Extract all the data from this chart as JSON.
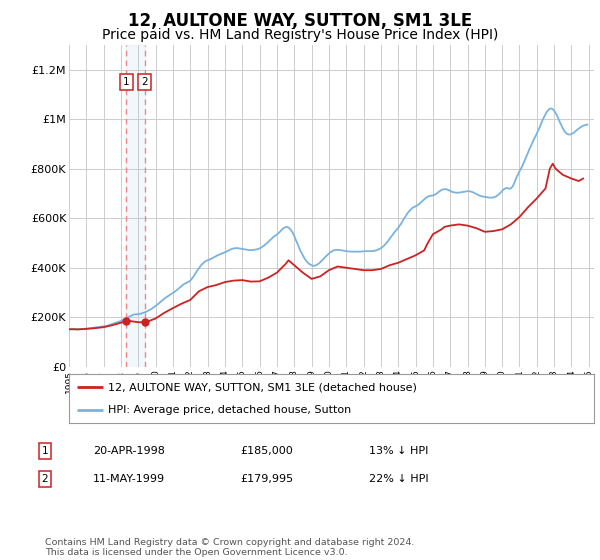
{
  "title": "12, AULTONE WAY, SUTTON, SM1 3LE",
  "subtitle": "Price paid vs. HM Land Registry's House Price Index (HPI)",
  "title_fontsize": 12,
  "subtitle_fontsize": 10,
  "ylim": [
    0,
    1300000
  ],
  "yticks": [
    0,
    200000,
    400000,
    600000,
    800000,
    1000000,
    1200000
  ],
  "ytick_labels": [
    "£0",
    "£200K",
    "£400K",
    "£600K",
    "£800K",
    "£1M",
    "£1.2M"
  ],
  "background_color": "#ffffff",
  "plot_bg_color": "#ffffff",
  "grid_color": "#cccccc",
  "sale1_date": 1998.31,
  "sale1_price": 185000,
  "sale2_date": 1999.37,
  "sale2_price": 179995,
  "sale1_label": "20-APR-1998",
  "sale1_price_label": "£185,000",
  "sale1_hpi": "13% ↓ HPI",
  "sale2_label": "11-MAY-1999",
  "sale2_price_label": "£179,995",
  "sale2_hpi": "22% ↓ HPI",
  "hpi_color": "#7ab3e0",
  "price_color": "#cc2222",
  "marker_color": "#cc2222",
  "vline_color": "#ee8888",
  "footnote": "Contains HM Land Registry data © Crown copyright and database right 2024.\nThis data is licensed under the Open Government Licence v3.0.",
  "legend_label1": "12, AULTONE WAY, SUTTON, SM1 3LE (detached house)",
  "legend_label2": "HPI: Average price, detached house, Sutton",
  "hpi_data": [
    [
      1995.0,
      152000
    ],
    [
      1995.08,
      151000
    ],
    [
      1995.17,
      151500
    ],
    [
      1995.25,
      152000
    ],
    [
      1995.33,
      152500
    ],
    [
      1995.42,
      152000
    ],
    [
      1995.5,
      151000
    ],
    [
      1995.58,
      151500
    ],
    [
      1995.67,
      152000
    ],
    [
      1995.75,
      153000
    ],
    [
      1995.83,
      153500
    ],
    [
      1995.92,
      154000
    ],
    [
      1996.0,
      154000
    ],
    [
      1996.08,
      154500
    ],
    [
      1996.17,
      155000
    ],
    [
      1996.25,
      156000
    ],
    [
      1996.33,
      157000
    ],
    [
      1996.42,
      158000
    ],
    [
      1996.5,
      158500
    ],
    [
      1996.58,
      159000
    ],
    [
      1996.67,
      160000
    ],
    [
      1996.75,
      161000
    ],
    [
      1996.83,
      162000
    ],
    [
      1996.92,
      163000
    ],
    [
      1997.0,
      163000
    ],
    [
      1997.08,
      164000
    ],
    [
      1997.17,
      165000
    ],
    [
      1997.25,
      167000
    ],
    [
      1997.33,
      169000
    ],
    [
      1997.42,
      171000
    ],
    [
      1997.5,
      173000
    ],
    [
      1997.58,
      175000
    ],
    [
      1997.67,
      177000
    ],
    [
      1997.75,
      179000
    ],
    [
      1997.83,
      181000
    ],
    [
      1997.92,
      183000
    ],
    [
      1998.0,
      185000
    ],
    [
      1998.08,
      188000
    ],
    [
      1998.17,
      191000
    ],
    [
      1998.25,
      194000
    ],
    [
      1998.33,
      197000
    ],
    [
      1998.42,
      200000
    ],
    [
      1998.5,
      203000
    ],
    [
      1998.58,
      206000
    ],
    [
      1998.67,
      209000
    ],
    [
      1998.75,
      211000
    ],
    [
      1998.83,
      212000
    ],
    [
      1998.92,
      212000
    ],
    [
      1999.0,
      213000
    ],
    [
      1999.08,
      214000
    ],
    [
      1999.17,
      215000
    ],
    [
      1999.25,
      217000
    ],
    [
      1999.33,
      219000
    ],
    [
      1999.42,
      221000
    ],
    [
      1999.5,
      224000
    ],
    [
      1999.58,
      227000
    ],
    [
      1999.67,
      230000
    ],
    [
      1999.75,
      233000
    ],
    [
      1999.83,
      237000
    ],
    [
      1999.92,
      241000
    ],
    [
      2000.0,
      245000
    ],
    [
      2000.08,
      250000
    ],
    [
      2000.17,
      255000
    ],
    [
      2000.25,
      260000
    ],
    [
      2000.33,
      265000
    ],
    [
      2000.42,
      270000
    ],
    [
      2000.5,
      275000
    ],
    [
      2000.58,
      279000
    ],
    [
      2000.67,
      283000
    ],
    [
      2000.75,
      287000
    ],
    [
      2000.83,
      291000
    ],
    [
      2000.92,
      295000
    ],
    [
      2001.0,
      298000
    ],
    [
      2001.08,
      302000
    ],
    [
      2001.17,
      306000
    ],
    [
      2001.25,
      311000
    ],
    [
      2001.33,
      316000
    ],
    [
      2001.42,
      321000
    ],
    [
      2001.5,
      326000
    ],
    [
      2001.58,
      331000
    ],
    [
      2001.67,
      335000
    ],
    [
      2001.75,
      338000
    ],
    [
      2001.83,
      341000
    ],
    [
      2001.92,
      344000
    ],
    [
      2002.0,
      348000
    ],
    [
      2002.08,
      355000
    ],
    [
      2002.17,
      363000
    ],
    [
      2002.25,
      372000
    ],
    [
      2002.33,
      381000
    ],
    [
      2002.42,
      390000
    ],
    [
      2002.5,
      398000
    ],
    [
      2002.58,
      406000
    ],
    [
      2002.67,
      413000
    ],
    [
      2002.75,
      419000
    ],
    [
      2002.83,
      424000
    ],
    [
      2002.92,
      428000
    ],
    [
      2003.0,
      430000
    ],
    [
      2003.08,
      432000
    ],
    [
      2003.17,
      435000
    ],
    [
      2003.25,
      438000
    ],
    [
      2003.33,
      441000
    ],
    [
      2003.42,
      444000
    ],
    [
      2003.5,
      447000
    ],
    [
      2003.58,
      450000
    ],
    [
      2003.67,
      453000
    ],
    [
      2003.75,
      456000
    ],
    [
      2003.83,
      458000
    ],
    [
      2003.92,
      460000
    ],
    [
      2004.0,
      462000
    ],
    [
      2004.08,
      465000
    ],
    [
      2004.17,
      468000
    ],
    [
      2004.25,
      471000
    ],
    [
      2004.33,
      474000
    ],
    [
      2004.42,
      476000
    ],
    [
      2004.5,
      478000
    ],
    [
      2004.58,
      479000
    ],
    [
      2004.67,
      479000
    ],
    [
      2004.75,
      479000
    ],
    [
      2004.83,
      478000
    ],
    [
      2004.92,
      477000
    ],
    [
      2005.0,
      476000
    ],
    [
      2005.08,
      475000
    ],
    [
      2005.17,
      474000
    ],
    [
      2005.25,
      473000
    ],
    [
      2005.33,
      472000
    ],
    [
      2005.42,
      471000
    ],
    [
      2005.5,
      471000
    ],
    [
      2005.58,
      471000
    ],
    [
      2005.67,
      472000
    ],
    [
      2005.75,
      473000
    ],
    [
      2005.83,
      474000
    ],
    [
      2005.92,
      476000
    ],
    [
      2006.0,
      478000
    ],
    [
      2006.08,
      481000
    ],
    [
      2006.17,
      485000
    ],
    [
      2006.25,
      489000
    ],
    [
      2006.33,
      494000
    ],
    [
      2006.42,
      499000
    ],
    [
      2006.5,
      504000
    ],
    [
      2006.58,
      510000
    ],
    [
      2006.67,
      516000
    ],
    [
      2006.75,
      521000
    ],
    [
      2006.83,
      526000
    ],
    [
      2006.92,
      530000
    ],
    [
      2007.0,
      534000
    ],
    [
      2007.08,
      539000
    ],
    [
      2007.17,
      545000
    ],
    [
      2007.25,
      551000
    ],
    [
      2007.33,
      557000
    ],
    [
      2007.42,
      561000
    ],
    [
      2007.5,
      564000
    ],
    [
      2007.58,
      565000
    ],
    [
      2007.67,
      562000
    ],
    [
      2007.75,
      557000
    ],
    [
      2007.83,
      550000
    ],
    [
      2007.92,
      540000
    ],
    [
      2008.0,
      528000
    ],
    [
      2008.08,
      514000
    ],
    [
      2008.17,
      500000
    ],
    [
      2008.25,
      486000
    ],
    [
      2008.33,
      472000
    ],
    [
      2008.42,
      460000
    ],
    [
      2008.5,
      449000
    ],
    [
      2008.58,
      439000
    ],
    [
      2008.67,
      430000
    ],
    [
      2008.75,
      423000
    ],
    [
      2008.83,
      417000
    ],
    [
      2008.92,
      413000
    ],
    [
      2009.0,
      410000
    ],
    [
      2009.08,
      408000
    ],
    [
      2009.17,
      408000
    ],
    [
      2009.25,
      410000
    ],
    [
      2009.33,
      413000
    ],
    [
      2009.42,
      417000
    ],
    [
      2009.5,
      422000
    ],
    [
      2009.58,
      428000
    ],
    [
      2009.67,
      434000
    ],
    [
      2009.75,
      440000
    ],
    [
      2009.83,
      446000
    ],
    [
      2009.92,
      452000
    ],
    [
      2010.0,
      457000
    ],
    [
      2010.08,
      462000
    ],
    [
      2010.17,
      466000
    ],
    [
      2010.25,
      469000
    ],
    [
      2010.33,
      471000
    ],
    [
      2010.42,
      472000
    ],
    [
      2010.5,
      472000
    ],
    [
      2010.58,
      472000
    ],
    [
      2010.67,
      471000
    ],
    [
      2010.75,
      470000
    ],
    [
      2010.83,
      469000
    ],
    [
      2010.92,
      468000
    ],
    [
      2011.0,
      467000
    ],
    [
      2011.08,
      466000
    ],
    [
      2011.17,
      466000
    ],
    [
      2011.25,
      465000
    ],
    [
      2011.33,
      465000
    ],
    [
      2011.42,
      465000
    ],
    [
      2011.5,
      465000
    ],
    [
      2011.58,
      465000
    ],
    [
      2011.67,
      465000
    ],
    [
      2011.75,
      465000
    ],
    [
      2011.83,
      465000
    ],
    [
      2011.92,
      466000
    ],
    [
      2012.0,
      466000
    ],
    [
      2012.08,
      467000
    ],
    [
      2012.17,
      467000
    ],
    [
      2012.25,
      467000
    ],
    [
      2012.33,
      467000
    ],
    [
      2012.42,
      467000
    ],
    [
      2012.5,
      467000
    ],
    [
      2012.58,
      468000
    ],
    [
      2012.67,
      469000
    ],
    [
      2012.75,
      471000
    ],
    [
      2012.83,
      473000
    ],
    [
      2012.92,
      476000
    ],
    [
      2013.0,
      479000
    ],
    [
      2013.08,
      483000
    ],
    [
      2013.17,
      488000
    ],
    [
      2013.25,
      494000
    ],
    [
      2013.33,
      501000
    ],
    [
      2013.42,
      508000
    ],
    [
      2013.5,
      516000
    ],
    [
      2013.58,
      524000
    ],
    [
      2013.67,
      532000
    ],
    [
      2013.75,
      540000
    ],
    [
      2013.83,
      547000
    ],
    [
      2013.92,
      554000
    ],
    [
      2014.0,
      561000
    ],
    [
      2014.08,
      569000
    ],
    [
      2014.17,
      578000
    ],
    [
      2014.25,
      588000
    ],
    [
      2014.33,
      598000
    ],
    [
      2014.42,
      607000
    ],
    [
      2014.5,
      616000
    ],
    [
      2014.58,
      624000
    ],
    [
      2014.67,
      631000
    ],
    [
      2014.75,
      637000
    ],
    [
      2014.83,
      642000
    ],
    [
      2014.92,
      645000
    ],
    [
      2015.0,
      648000
    ],
    [
      2015.08,
      651000
    ],
    [
      2015.17,
      655000
    ],
    [
      2015.25,
      660000
    ],
    [
      2015.33,
      665000
    ],
    [
      2015.42,
      671000
    ],
    [
      2015.5,
      676000
    ],
    [
      2015.58,
      681000
    ],
    [
      2015.67,
      685000
    ],
    [
      2015.75,
      688000
    ],
    [
      2015.83,
      690000
    ],
    [
      2015.92,
      691000
    ],
    [
      2016.0,
      692000
    ],
    [
      2016.08,
      694000
    ],
    [
      2016.17,
      697000
    ],
    [
      2016.25,
      701000
    ],
    [
      2016.33,
      706000
    ],
    [
      2016.42,
      710000
    ],
    [
      2016.5,
      714000
    ],
    [
      2016.58,
      716000
    ],
    [
      2016.67,
      717000
    ],
    [
      2016.75,
      717000
    ],
    [
      2016.83,
      716000
    ],
    [
      2016.92,
      713000
    ],
    [
      2017.0,
      710000
    ],
    [
      2017.08,
      707000
    ],
    [
      2017.17,
      705000
    ],
    [
      2017.25,
      704000
    ],
    [
      2017.33,
      703000
    ],
    [
      2017.42,
      703000
    ],
    [
      2017.5,
      703000
    ],
    [
      2017.58,
      704000
    ],
    [
      2017.67,
      705000
    ],
    [
      2017.75,
      706000
    ],
    [
      2017.83,
      707000
    ],
    [
      2017.92,
      708000
    ],
    [
      2018.0,
      709000
    ],
    [
      2018.08,
      709000
    ],
    [
      2018.17,
      708000
    ],
    [
      2018.25,
      706000
    ],
    [
      2018.33,
      704000
    ],
    [
      2018.42,
      701000
    ],
    [
      2018.5,
      698000
    ],
    [
      2018.58,
      695000
    ],
    [
      2018.67,
      692000
    ],
    [
      2018.75,
      690000
    ],
    [
      2018.83,
      688000
    ],
    [
      2018.92,
      687000
    ],
    [
      2019.0,
      686000
    ],
    [
      2019.08,
      685000
    ],
    [
      2019.17,
      684000
    ],
    [
      2019.25,
      683000
    ],
    [
      2019.33,
      683000
    ],
    [
      2019.42,
      683000
    ],
    [
      2019.5,
      684000
    ],
    [
      2019.58,
      686000
    ],
    [
      2019.67,
      689000
    ],
    [
      2019.75,
      693000
    ],
    [
      2019.83,
      698000
    ],
    [
      2019.92,
      704000
    ],
    [
      2020.0,
      710000
    ],
    [
      2020.08,
      716000
    ],
    [
      2020.17,
      720000
    ],
    [
      2020.25,
      722000
    ],
    [
      2020.33,
      721000
    ],
    [
      2020.42,
      719000
    ],
    [
      2020.5,
      720000
    ],
    [
      2020.58,
      726000
    ],
    [
      2020.67,
      737000
    ],
    [
      2020.75,
      751000
    ],
    [
      2020.83,
      765000
    ],
    [
      2020.92,
      778000
    ],
    [
      2021.0,
      789000
    ],
    [
      2021.08,
      800000
    ],
    [
      2021.17,
      812000
    ],
    [
      2021.25,
      825000
    ],
    [
      2021.33,
      838000
    ],
    [
      2021.42,
      852000
    ],
    [
      2021.5,
      866000
    ],
    [
      2021.58,
      880000
    ],
    [
      2021.67,
      893000
    ],
    [
      2021.75,
      906000
    ],
    [
      2021.83,
      918000
    ],
    [
      2021.92,
      930000
    ],
    [
      2022.0,
      942000
    ],
    [
      2022.08,
      955000
    ],
    [
      2022.17,
      968000
    ],
    [
      2022.25,
      982000
    ],
    [
      2022.33,
      996000
    ],
    [
      2022.42,
      1009000
    ],
    [
      2022.5,
      1020000
    ],
    [
      2022.58,
      1030000
    ],
    [
      2022.67,
      1037000
    ],
    [
      2022.75,
      1042000
    ],
    [
      2022.83,
      1043000
    ],
    [
      2022.92,
      1040000
    ],
    [
      2023.0,
      1034000
    ],
    [
      2023.08,
      1025000
    ],
    [
      2023.17,
      1014000
    ],
    [
      2023.25,
      1001000
    ],
    [
      2023.33,
      988000
    ],
    [
      2023.42,
      975000
    ],
    [
      2023.5,
      963000
    ],
    [
      2023.58,
      953000
    ],
    [
      2023.67,
      945000
    ],
    [
      2023.75,
      940000
    ],
    [
      2023.83,
      938000
    ],
    [
      2023.92,
      938000
    ],
    [
      2024.0,
      940000
    ],
    [
      2024.08,
      943000
    ],
    [
      2024.17,
      947000
    ],
    [
      2024.25,
      952000
    ],
    [
      2024.33,
      957000
    ],
    [
      2024.42,
      962000
    ],
    [
      2024.5,
      966000
    ],
    [
      2024.58,
      970000
    ],
    [
      2024.67,
      973000
    ],
    [
      2024.75,
      975000
    ],
    [
      2024.83,
      977000
    ],
    [
      2024.92,
      978000
    ]
  ],
  "price_data": [
    [
      1995.0,
      152000
    ],
    [
      1995.5,
      151000
    ],
    [
      1996.0,
      153000
    ],
    [
      1996.5,
      156000
    ],
    [
      1997.0,
      160000
    ],
    [
      1997.5,
      168000
    ],
    [
      1998.0,
      178000
    ],
    [
      1998.31,
      185000
    ],
    [
      1998.5,
      185000
    ],
    [
      1999.0,
      180000
    ],
    [
      1999.37,
      179995
    ],
    [
      1999.5,
      182000
    ],
    [
      2000.0,
      195000
    ],
    [
      2000.5,
      218000
    ],
    [
      2001.0,
      237000
    ],
    [
      2001.5,
      255000
    ],
    [
      2002.0,
      270000
    ],
    [
      2002.5,
      305000
    ],
    [
      2003.0,
      322000
    ],
    [
      2003.5,
      330000
    ],
    [
      2004.0,
      342000
    ],
    [
      2004.5,
      348000
    ],
    [
      2005.0,
      350000
    ],
    [
      2005.5,
      344000
    ],
    [
      2006.0,
      345000
    ],
    [
      2006.5,
      360000
    ],
    [
      2007.0,
      380000
    ],
    [
      2007.5,
      415000
    ],
    [
      2007.67,
      430000
    ],
    [
      2008.0,
      410000
    ],
    [
      2008.5,
      380000
    ],
    [
      2009.0,
      355000
    ],
    [
      2009.5,
      365000
    ],
    [
      2010.0,
      390000
    ],
    [
      2010.5,
      405000
    ],
    [
      2011.0,
      400000
    ],
    [
      2011.5,
      395000
    ],
    [
      2012.0,
      390000
    ],
    [
      2012.5,
      390000
    ],
    [
      2013.0,
      395000
    ],
    [
      2013.5,
      410000
    ],
    [
      2014.0,
      420000
    ],
    [
      2014.5,
      435000
    ],
    [
      2015.0,
      450000
    ],
    [
      2015.5,
      470000
    ],
    [
      2015.67,
      495000
    ],
    [
      2016.0,
      535000
    ],
    [
      2016.5,
      555000
    ],
    [
      2016.67,
      565000
    ],
    [
      2017.0,
      570000
    ],
    [
      2017.5,
      575000
    ],
    [
      2018.0,
      570000
    ],
    [
      2018.5,
      560000
    ],
    [
      2019.0,
      545000
    ],
    [
      2019.5,
      548000
    ],
    [
      2020.0,
      555000
    ],
    [
      2020.5,
      575000
    ],
    [
      2021.0,
      605000
    ],
    [
      2021.5,
      645000
    ],
    [
      2022.0,
      680000
    ],
    [
      2022.5,
      720000
    ],
    [
      2022.75,
      800000
    ],
    [
      2022.92,
      820000
    ],
    [
      2023.0,
      810000
    ],
    [
      2023.08,
      800000
    ],
    [
      2023.5,
      775000
    ],
    [
      2024.0,
      760000
    ],
    [
      2024.42,
      750000
    ],
    [
      2024.67,
      760000
    ]
  ]
}
